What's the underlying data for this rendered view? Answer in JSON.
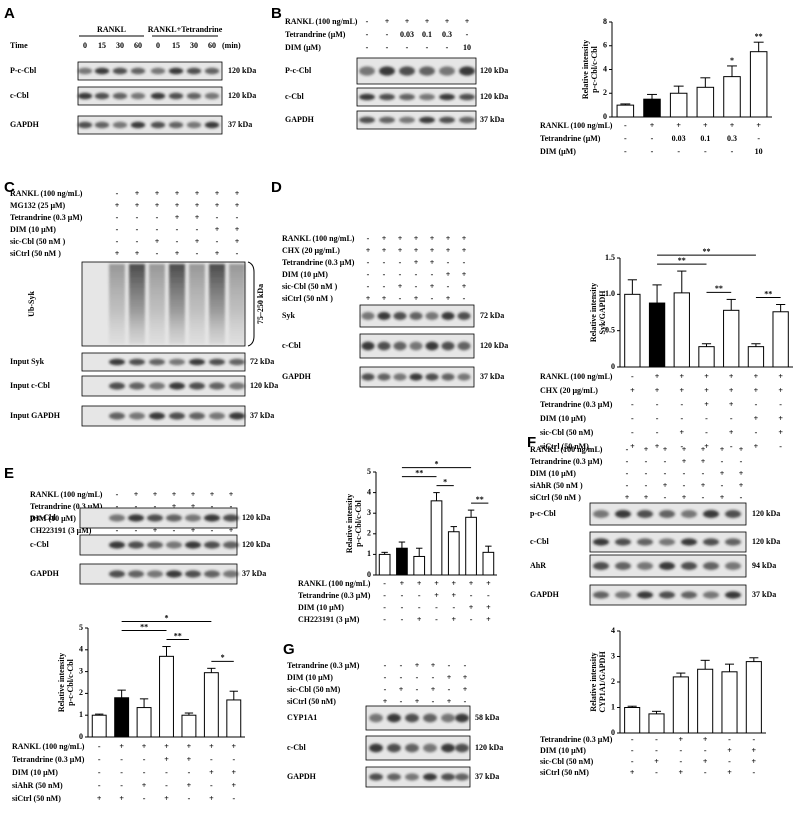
{
  "panels": [
    {
      "letter": "A",
      "groups": [
        "RANKL",
        "RANKL+Tetrandrine"
      ],
      "time_label": "Time",
      "times": [
        0,
        15,
        30,
        60,
        0,
        15,
        30,
        60
      ],
      "time_unit": "(min)",
      "rows": [
        {
          "name": "P-c-Cbl",
          "size": "120 kDa"
        },
        {
          "name": "c-Cbl",
          "size": "120 kDa"
        },
        {
          "name": "GAPDH",
          "size": "37 kDa"
        }
      ]
    },
    {
      "letter": "B",
      "conditions": [
        {
          "label": "RANKL (100 ng/mL)",
          "marks": [
            "-",
            "+",
            "+",
            "+",
            "+",
            "+"
          ]
        },
        {
          "label": "Tetrandrine (μM)",
          "marks": [
            "-",
            "-",
            "0.03",
            "0.1",
            "0.3",
            "-"
          ]
        },
        {
          "label": "DIM (μM)",
          "marks": [
            "-",
            "-",
            "-",
            "-",
            "-",
            "10"
          ]
        }
      ],
      "rows": [
        {
          "name": "P-c-Cbl",
          "size": "120 kDa"
        },
        {
          "name": "c-Cbl",
          "size": "120 kDa"
        },
        {
          "name": "GAPDH",
          "size": "37 kDa"
        }
      ]
    },
    {
      "letter": "C",
      "conditions": [
        {
          "label": "RANKL (100 ng/mL)",
          "marks": [
            "-",
            "+",
            "+",
            "+",
            "+",
            "+",
            "+"
          ]
        },
        {
          "label": "MG132 (25 μM)",
          "marks": [
            "+",
            "+",
            "+",
            "+",
            "+",
            "+",
            "+"
          ]
        },
        {
          "label": "Tetrandrine (0.3 μM)",
          "marks": [
            "-",
            "-",
            "-",
            "+",
            "+",
            "-",
            "-"
          ]
        },
        {
          "label": "DIM (10 μM)",
          "marks": [
            "-",
            "-",
            "-",
            "-",
            "-",
            "+",
            "+"
          ]
        },
        {
          "label": "sic-Cbl (50 nM )",
          "marks": [
            "-",
            "-",
            "+",
            "-",
            "+",
            "-",
            "+"
          ]
        },
        {
          "label": "siCtrl (50 nM )",
          "marks": [
            "+",
            "+",
            "-",
            "+",
            "-",
            "+",
            "-"
          ]
        }
      ],
      "rows": [
        {
          "name": "Ub-Syk"
        },
        {
          "name": "Input Syk",
          "size": "72 kDa"
        },
        {
          "name": "Input c-Cbl",
          "size": "120 kDa"
        },
        {
          "name": "Input GAPDH",
          "size": "37 kDa"
        }
      ],
      "range": "75–250 kDa"
    },
    {
      "letter": "D",
      "conditions": [
        {
          "label": "RANKL (100 ng/mL)",
          "marks": [
            "-",
            "+",
            "+",
            "+",
            "+",
            "+",
            "+"
          ]
        },
        {
          "label": "CHX (20 μg/mL)",
          "marks": [
            "+",
            "+",
            "+",
            "+",
            "+",
            "+",
            "+"
          ]
        },
        {
          "label": "Tetrandrine (0.3 μM)",
          "marks": [
            "-",
            "-",
            "-",
            "+",
            "+",
            "-",
            "-"
          ]
        },
        {
          "label": "DIM (10 μM)",
          "marks": [
            "-",
            "-",
            "-",
            "-",
            "-",
            "+",
            "+"
          ]
        },
        {
          "label": "sic-Cbl (50 nM )",
          "marks": [
            "-",
            "-",
            "+",
            "-",
            "+",
            "-",
            "+"
          ]
        },
        {
          "label": "siCtrl (50 nM )",
          "marks": [
            "+",
            "+",
            "-",
            "+",
            "-",
            "+",
            "-"
          ]
        }
      ],
      "rows": [
        {
          "name": "Syk",
          "size": "72 kDa"
        },
        {
          "name": "c-Cbl",
          "size": "120 kDa"
        },
        {
          "name": "GAPDH",
          "size": "37 kDa"
        }
      ]
    },
    {
      "letter": "E",
      "conditions": [
        {
          "label": "RANKL (100 ng/mL)",
          "marks": [
            "-",
            "+",
            "+",
            "+",
            "+",
            "+",
            "+"
          ]
        },
        {
          "label": "Tetrandrine (0.3 μM)",
          "marks": [
            "-",
            "-",
            "-",
            "+",
            "+",
            "-",
            "-"
          ]
        },
        {
          "label": "DIM (10 μM)",
          "marks": [
            "-",
            "-",
            "-",
            "-",
            "-",
            "+",
            "+"
          ]
        },
        {
          "label": "CH223191 (3 μM)",
          "marks": [
            "-",
            "-",
            "+",
            "-",
            "+",
            "-",
            "+"
          ]
        }
      ],
      "rows": [
        {
          "name": "p-c-Cbl",
          "size": "120 kDa"
        },
        {
          "name": "c-Cbl",
          "size": "120 kDa"
        },
        {
          "name": "GAPDH",
          "size": "37 kDa"
        }
      ]
    },
    {
      "letter": "F",
      "conditions": [
        {
          "label": "RANKL (100 ng/mL)",
          "marks": [
            "-",
            "+",
            "+",
            "+",
            "+",
            "+",
            "+"
          ]
        },
        {
          "label": "Tetrandrine (0.3 μM)",
          "marks": [
            "-",
            "-",
            "-",
            "+",
            "+",
            "-",
            "-"
          ]
        },
        {
          "label": "DIM (10 μM)",
          "marks": [
            "-",
            "-",
            "-",
            "-",
            "-",
            "+",
            "+"
          ]
        },
        {
          "label": "siAhR (50 nM )",
          "marks": [
            "-",
            "-",
            "+",
            "-",
            "+",
            "-",
            "+"
          ]
        },
        {
          "label": "siCtrl (50 nM )",
          "marks": [
            "+",
            "+",
            "-",
            "+",
            "-",
            "+",
            "-"
          ]
        }
      ],
      "rows": [
        {
          "name": "p-c-Cbl",
          "size": "120 kDa"
        },
        {
          "name": "c-Cbl",
          "size": "120 kDa"
        },
        {
          "name": "AhR",
          "size": "94 kDa"
        },
        {
          "name": "GAPDH",
          "size": "37 kDa"
        }
      ]
    },
    {
      "letter": "G",
      "conditions": [
        {
          "label": "Tetrandrine (0.3 μM)",
          "marks": [
            "-",
            "-",
            "+",
            "+",
            "-",
            "-"
          ]
        },
        {
          "label": "DIM  (10 μM)",
          "marks": [
            "-",
            "-",
            "-",
            "-",
            "+",
            "+"
          ]
        },
        {
          "label": "sic-Cbl  (50 nM)",
          "marks": [
            "-",
            "+",
            "-",
            "+",
            "-",
            "+"
          ]
        },
        {
          "label": "siCtrl (50 nM)",
          "marks": [
            "+",
            "-",
            "+",
            "-",
            "+",
            "-"
          ]
        }
      ],
      "rows": [
        {
          "name": "CYP1A1",
          "size": "58 kDa"
        },
        {
          "name": "c-Cbl",
          "size": "120 kDa"
        },
        {
          "name": "GAPDH",
          "size": "37 kDa"
        }
      ]
    }
  ],
  "chart_data": [
    {
      "type": "bar",
      "ylabel": [
        "Relative intensity",
        "p-c-Cbl/c-Cbl"
      ],
      "values": [
        1.0,
        1.5,
        2.0,
        2.5,
        3.4,
        5.5
      ],
      "errors": [
        0.1,
        0.4,
        0.6,
        0.8,
        0.9,
        0.8
      ],
      "colors": [
        "#ffffff",
        "#000000",
        "#ffffff",
        "#ffffff",
        "#ffffff",
        "#ffffff"
      ],
      "ylim": [
        0,
        8
      ],
      "yticks": [
        0,
        2,
        4,
        6,
        8
      ],
      "annotations": [
        {
          "bar": 4,
          "label": "*"
        },
        {
          "bar": 5,
          "label": "**"
        }
      ],
      "conditions": [
        {
          "label": "RANKL (100 ng/mL)",
          "marks": [
            "-",
            "+",
            "+",
            "+",
            "+",
            "+"
          ]
        },
        {
          "label": "Tetrandrine (μM)",
          "marks": [
            "-",
            "-",
            "0.03",
            "0.1",
            "0.3",
            "-"
          ]
        },
        {
          "label": "DIM (μM)",
          "marks": [
            "-",
            "-",
            "-",
            "-",
            "-",
            "10"
          ]
        }
      ]
    },
    {
      "type": "bar",
      "ylabel": [
        "Relative intensity",
        "Syk/GAPDH"
      ],
      "values": [
        1.0,
        0.88,
        1.02,
        0.28,
        0.78,
        0.28,
        0.76
      ],
      "errors": [
        0.2,
        0.25,
        0.3,
        0.04,
        0.15,
        0.04,
        0.1
      ],
      "colors": [
        "#ffffff",
        "#000000",
        "#ffffff",
        "#ffffff",
        "#ffffff",
        "#ffffff",
        "#ffffff"
      ],
      "ylim": [
        0,
        1.5
      ],
      "yticks": [
        0,
        0.5,
        {
          "value": 1,
          "label": "1.0"
        },
        1.5
      ],
      "brackets": [
        {
          "bars": [
            3,
            4
          ],
          "label": "**"
        },
        {
          "bars": [
            5,
            6
          ],
          "label": "**"
        },
        {
          "bars": [
            1,
            3
          ],
          "label": "**"
        },
        {
          "bars": [
            1,
            5
          ],
          "label": "**"
        }
      ],
      "conditions": [
        {
          "label": "RANKL (100 ng/mL)",
          "marks": [
            "-",
            "+",
            "+",
            "+",
            "+",
            "+",
            "+"
          ]
        },
        {
          "label": "CHX (20 μg/mL)",
          "marks": [
            "+",
            "+",
            "+",
            "+",
            "+",
            "+",
            "+"
          ]
        },
        {
          "label": "Tetrandrine (0.3 μM)",
          "marks": [
            "-",
            "-",
            "-",
            "+",
            "+",
            "-",
            "-"
          ]
        },
        {
          "label": "DIM (10 μM)",
          "marks": [
            "-",
            "-",
            "-",
            "-",
            "-",
            "+",
            "+"
          ]
        },
        {
          "label": "sic-Cbl (50 nM)",
          "marks": [
            "-",
            "-",
            "+",
            "-",
            "+",
            "-",
            "+"
          ]
        },
        {
          "label": "siCtrl (50 nM)",
          "marks": [
            "+",
            "+",
            "-",
            "+",
            "-",
            "+",
            "-"
          ]
        }
      ]
    },
    {
      "type": "bar",
      "ylabel": [
        "Relative intensity",
        "p-c-Cbl/c-Cbl"
      ],
      "values": [
        1.0,
        1.3,
        0.9,
        3.6,
        2.1,
        2.8,
        1.1
      ],
      "errors": [
        0.1,
        0.3,
        0.4,
        0.4,
        0.25,
        0.35,
        0.3
      ],
      "colors": [
        "#ffffff",
        "#000000",
        "#ffffff",
        "#ffffff",
        "#ffffff",
        "#ffffff",
        "#ffffff"
      ],
      "ylim": [
        0,
        5
      ],
      "yticks": [
        0,
        1,
        2,
        3,
        4,
        5
      ],
      "brackets": [
        {
          "bars": [
            3,
            4
          ],
          "label": "*"
        },
        {
          "bars": [
            5,
            6
          ],
          "label": "**"
        },
        {
          "bars": [
            1,
            3
          ],
          "label": "**"
        },
        {
          "bars": [
            1,
            5
          ],
          "label": "*"
        }
      ],
      "conditions": [
        {
          "label": "RANKL (100 ng/mL)",
          "marks": [
            "-",
            "+",
            "+",
            "+",
            "+",
            "+",
            "+"
          ]
        },
        {
          "label": "Tetrandrine (0.3 μM)",
          "marks": [
            "-",
            "-",
            "-",
            "+",
            "+",
            "-",
            "-"
          ]
        },
        {
          "label": "DIM (10 μM)",
          "marks": [
            "-",
            "-",
            "-",
            "-",
            "-",
            "+",
            "+"
          ]
        },
        {
          "label": "CH223191 (3 μM)",
          "marks": [
            "-",
            "-",
            "+",
            "-",
            "+",
            "-",
            "+"
          ]
        }
      ]
    },
    {
      "type": "bar",
      "ylabel": [
        "Relative intensity",
        "p-c-Cbl/c-Cbl"
      ],
      "values": [
        1.0,
        1.8,
        1.35,
        3.7,
        1.0,
        2.95,
        1.7
      ],
      "errors": [
        0.05,
        0.35,
        0.4,
        0.45,
        0.1,
        0.2,
        0.4
      ],
      "colors": [
        "#ffffff",
        "#000000",
        "#ffffff",
        "#ffffff",
        "#ffffff",
        "#ffffff",
        "#ffffff"
      ],
      "ylim": [
        0,
        5
      ],
      "yticks": [
        0,
        1,
        2,
        3,
        4,
        5
      ],
      "brackets": [
        {
          "bars": [
            3,
            4
          ],
          "label": "**"
        },
        {
          "bars": [
            5,
            6
          ],
          "label": "*"
        },
        {
          "bars": [
            1,
            3
          ],
          "label": "**"
        },
        {
          "bars": [
            1,
            5
          ],
          "label": "*"
        }
      ],
      "conditions": [
        {
          "label": "RANKL (100 ng/mL)",
          "marks": [
            "-",
            "+",
            "+",
            "+",
            "+",
            "+",
            "+"
          ]
        },
        {
          "label": "Tetrandrine (0.3 μM)",
          "marks": [
            "-",
            "-",
            "-",
            "+",
            "+",
            "-",
            "-"
          ]
        },
        {
          "label": "DIM (10 μM)",
          "marks": [
            "-",
            "-",
            "-",
            "-",
            "-",
            "+",
            "+"
          ]
        },
        {
          "label": "siAhR (50 nM)",
          "marks": [
            "-",
            "-",
            "+",
            "-",
            "+",
            "-",
            "+"
          ]
        },
        {
          "label": "siCtrl (50 nM)",
          "marks": [
            "+",
            "+",
            "-",
            "+",
            "-",
            "+",
            "-"
          ]
        }
      ]
    },
    {
      "type": "bar",
      "ylabel": [
        "Relative intensity",
        "CYP1A1/GAPDH"
      ],
      "values": [
        1.0,
        0.75,
        2.2,
        2.5,
        2.4,
        2.8
      ],
      "errors": [
        0.05,
        0.1,
        0.15,
        0.35,
        0.3,
        0.15
      ],
      "colors": [
        "#ffffff",
        "#ffffff",
        "#ffffff",
        "#ffffff",
        "#ffffff",
        "#ffffff"
      ],
      "ylim": [
        0,
        4
      ],
      "yticks": [
        0,
        1,
        2,
        3,
        4
      ],
      "conditions": [
        {
          "label": "Tetrandrine (0.3 μM)",
          "marks": [
            "-",
            "-",
            "+",
            "+",
            "-",
            "-"
          ]
        },
        {
          "label": "DIM (10 μM)",
          "marks": [
            "-",
            "-",
            "-",
            "-",
            "+",
            "+"
          ]
        },
        {
          "label": "sic-Cbl (50 nM)",
          "marks": [
            "-",
            "+",
            "-",
            "+",
            "-",
            "+"
          ]
        },
        {
          "label": "siCtrl (50 nM)",
          "marks": [
            "+",
            "-",
            "+",
            "-",
            "+",
            "-"
          ]
        }
      ]
    }
  ]
}
